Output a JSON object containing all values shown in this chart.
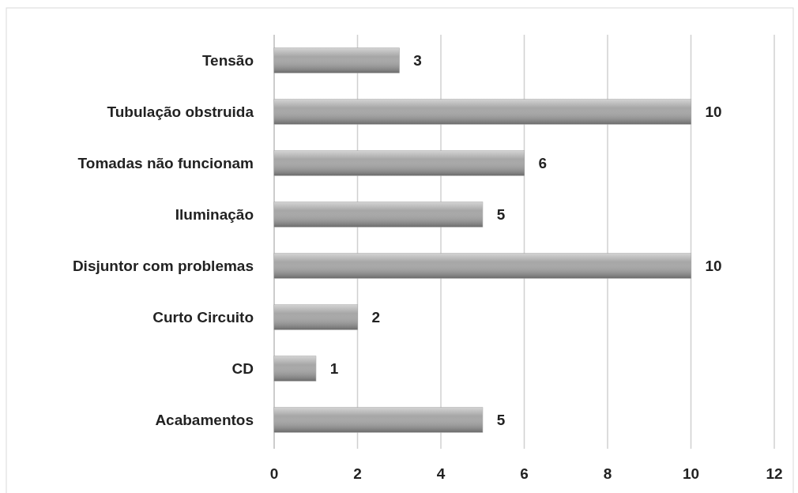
{
  "chart_data": {
    "type": "bar",
    "orientation": "horizontal",
    "categories": [
      "Tensão",
      "Tubulação obstruida",
      "Tomadas não funcionam",
      "Iluminação",
      "Disjuntor com problemas",
      "Curto Circuito",
      "CD",
      "Acabamentos"
    ],
    "values": [
      3,
      10,
      6,
      5,
      10,
      2,
      1,
      5
    ],
    "color": "#a6a6a6",
    "xlim": [
      0,
      12
    ],
    "xticks": [
      0,
      2,
      4,
      6,
      8,
      10,
      12
    ],
    "grid": "x",
    "data_labels": true
  }
}
